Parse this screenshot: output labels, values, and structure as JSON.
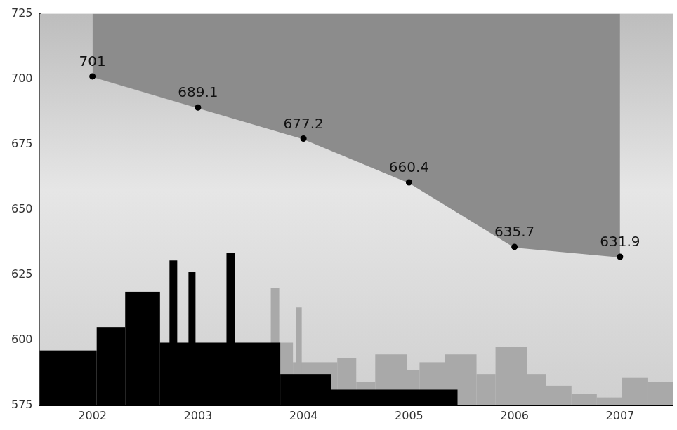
{
  "chart_data": {
    "type": "line",
    "categories": [
      "2002",
      "2003",
      "2004",
      "2005",
      "2006",
      "2007"
    ],
    "values": [
      701,
      689.1,
      677.2,
      660.4,
      635.7,
      631.9
    ],
    "color": "#8c8c8c",
    "ylim": [
      575,
      725
    ],
    "yticks": [
      575,
      600,
      625,
      650,
      675,
      700,
      725
    ],
    "grid": false,
    "data_labels": true
  }
}
